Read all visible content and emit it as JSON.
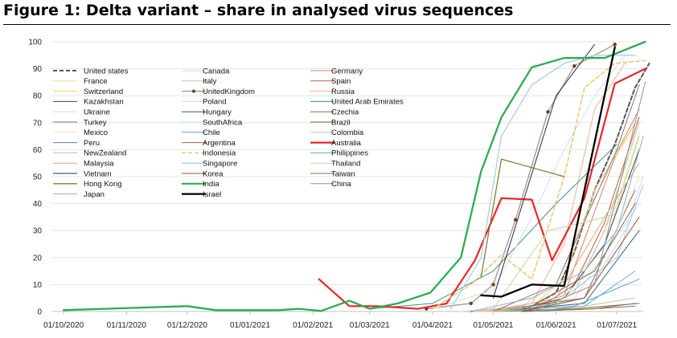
{
  "figure": {
    "title": "Figure  1: Delta variant – share in analysed virus sequences"
  },
  "chart_data": {
    "type": "line",
    "title": "Figure  1: Delta variant – share in analysed virus sequences",
    "xlabel": "",
    "ylabel": "",
    "ylim": [
      0,
      100
    ],
    "yticks": [
      0,
      10,
      20,
      30,
      40,
      50,
      60,
      70,
      80,
      90,
      100
    ],
    "xticks": [
      "01/10/2020",
      "01/11/2020",
      "01/12/2020",
      "01/01/2021",
      "01/02/2021",
      "01/03/2021",
      "01/04/2021",
      "01/05/2021",
      "01/06/2021",
      "01/07/2021"
    ],
    "xlim": [
      "2020-09-25",
      "2021-07-14"
    ],
    "grid": "horizontal",
    "legend": "top-left",
    "series": [
      {
        "name": "United states",
        "color": "#555555",
        "dash": "dashed",
        "width": 2,
        "points": [
          [
            "2021-04-20",
            0
          ],
          [
            "2021-05-20",
            2
          ],
          [
            "2021-06-01",
            7
          ],
          [
            "2021-06-10",
            22
          ],
          [
            "2021-06-20",
            45
          ],
          [
            "2021-06-30",
            62
          ],
          [
            "2021-07-10",
            83
          ],
          [
            "2021-07-17",
            92
          ]
        ]
      },
      {
        "name": "Canada",
        "color": "#f4cfc0",
        "dash": "solid",
        "width": 1,
        "points": [
          [
            "2021-04-15",
            0
          ],
          [
            "2021-05-15",
            2
          ],
          [
            "2021-06-01",
            10
          ],
          [
            "2021-06-15",
            35
          ],
          [
            "2021-07-01",
            58
          ],
          [
            "2021-07-12",
            72
          ]
        ]
      },
      {
        "name": "Germany",
        "color": "#d58560",
        "dash": "solid",
        "width": 1,
        "points": [
          [
            "2021-04-20",
            0
          ],
          [
            "2021-05-20",
            2
          ],
          [
            "2021-06-05",
            6
          ],
          [
            "2021-06-20",
            37
          ],
          [
            "2021-07-01",
            59
          ],
          [
            "2021-07-12",
            75
          ]
        ]
      },
      {
        "name": "France",
        "color": "#f5dd8e",
        "dash": "solid",
        "width": 1,
        "points": [
          [
            "2021-04-20",
            0
          ],
          [
            "2021-05-20",
            1
          ],
          [
            "2021-06-05",
            5
          ],
          [
            "2021-06-20",
            22
          ],
          [
            "2021-07-01",
            40
          ],
          [
            "2021-07-12",
            66
          ]
        ]
      },
      {
        "name": "Italy",
        "color": "#bfbfbf",
        "dash": "solid",
        "width": 1,
        "points": [
          [
            "2021-04-20",
            0
          ],
          [
            "2021-05-25",
            1
          ],
          [
            "2021-06-10",
            7
          ],
          [
            "2021-06-25",
            30
          ],
          [
            "2021-07-12",
            70
          ]
        ]
      },
      {
        "name": "Spain",
        "color": "#c06040",
        "dash": "solid",
        "width": 1,
        "points": [
          [
            "2021-04-20",
            0
          ],
          [
            "2021-05-25",
            2
          ],
          [
            "2021-06-10",
            10
          ],
          [
            "2021-06-25",
            33
          ],
          [
            "2021-07-12",
            72
          ]
        ]
      },
      {
        "name": "Switzerland",
        "color": "#f0d060",
        "dash": "solid",
        "width": 1,
        "points": [
          [
            "2021-04-20",
            0
          ],
          [
            "2021-05-20",
            2
          ],
          [
            "2021-06-05",
            12
          ],
          [
            "2021-06-20",
            45
          ],
          [
            "2021-07-10",
            70
          ]
        ]
      },
      {
        "name": "UnitedKingdom",
        "color": "#b0a090",
        "dash": "solid",
        "width": 1.5,
        "marker": "#7a3a12",
        "points": [
          [
            "2021-03-29",
            1
          ],
          [
            "2021-04-20",
            3
          ],
          [
            "2021-05-01",
            10
          ],
          [
            "2021-05-12",
            34
          ],
          [
            "2021-05-28",
            74
          ],
          [
            "2021-06-10",
            91
          ],
          [
            "2021-06-30",
            99
          ]
        ]
      },
      {
        "name": "Russia",
        "color": "#f0b090",
        "dash": "solid",
        "width": 1,
        "points": [
          [
            "2021-04-25",
            0
          ],
          [
            "2021-05-20",
            3
          ],
          [
            "2021-06-05",
            25
          ],
          [
            "2021-06-20",
            75
          ],
          [
            "2021-07-05",
            92
          ]
        ]
      },
      {
        "name": "Kazakhstan",
        "color": "#404040",
        "dash": "solid",
        "width": 1,
        "points": [
          [
            "2021-05-10",
            0
          ],
          [
            "2021-06-05",
            5
          ],
          [
            "2021-06-25",
            25
          ],
          [
            "2021-07-12",
            60
          ]
        ]
      },
      {
        "name": "Poland",
        "color": "#c8d8e8",
        "dash": "solid",
        "width": 1,
        "points": [
          [
            "2021-04-20",
            0
          ],
          [
            "2021-05-25",
            1
          ],
          [
            "2021-06-15",
            5
          ],
          [
            "2021-07-05",
            30
          ],
          [
            "2021-07-14",
            50
          ]
        ]
      },
      {
        "name": "United Arab Emirates",
        "color": "#3f8f8f",
        "dash": "solid",
        "width": 1,
        "points": [
          [
            "2021-03-01",
            1
          ],
          [
            "2021-04-01",
            3
          ],
          [
            "2021-05-01",
            15
          ],
          [
            "2021-06-01",
            40
          ],
          [
            "2021-07-01",
            62
          ]
        ]
      },
      {
        "name": "Ukraine",
        "color": "#d8d8d8",
        "dash": "solid",
        "width": 1,
        "points": [
          [
            "2021-05-10",
            0
          ],
          [
            "2021-06-10",
            5
          ],
          [
            "2021-07-12",
            40
          ]
        ]
      },
      {
        "name": "Hungary",
        "color": "#2f5f8f",
        "dash": "solid",
        "width": 1,
        "points": [
          [
            "2021-05-01",
            0
          ],
          [
            "2021-06-15",
            3
          ],
          [
            "2021-07-12",
            30
          ]
        ]
      },
      {
        "name": "Czechia",
        "color": "#8c6a50",
        "dash": "solid",
        "width": 1,
        "points": [
          [
            "2021-05-01",
            0
          ],
          [
            "2021-06-15",
            5
          ],
          [
            "2021-07-10",
            45
          ]
        ]
      },
      {
        "name": "Turkey",
        "color": "#7a7a7a",
        "dash": "solid",
        "width": 1,
        "points": [
          [
            "2021-05-01",
            0
          ],
          [
            "2021-06-01",
            10
          ],
          [
            "2021-07-01",
            60
          ],
          [
            "2021-07-12",
            84
          ]
        ]
      },
      {
        "name": "SouthAfrica",
        "color": "#cce0f0",
        "dash": "solid",
        "width": 1,
        "points": [
          [
            "2021-04-01",
            1
          ],
          [
            "2021-05-01",
            8
          ],
          [
            "2021-05-20",
            35
          ],
          [
            "2021-06-05",
            60
          ],
          [
            "2021-06-20",
            80
          ],
          [
            "2021-07-05",
            95
          ]
        ]
      },
      {
        "name": "Brazil",
        "color": "#7a6a18",
        "dash": "solid",
        "width": 1,
        "points": [
          [
            "2021-05-01",
            0
          ],
          [
            "2021-06-10",
            1
          ],
          [
            "2021-07-12",
            3
          ]
        ]
      },
      {
        "name": "Mexico",
        "color": "#efe4b8",
        "dash": "solid",
        "width": 1,
        "points": [
          [
            "2021-05-01",
            0
          ],
          [
            "2021-06-01",
            3
          ],
          [
            "2021-06-25",
            20
          ],
          [
            "2021-07-12",
            50
          ]
        ]
      },
      {
        "name": "Chile",
        "color": "#5aa0c8",
        "dash": "solid",
        "width": 1,
        "points": [
          [
            "2021-05-01",
            0
          ],
          [
            "2021-06-10",
            2
          ],
          [
            "2021-07-12",
            12
          ]
        ]
      },
      {
        "name": "Colombia",
        "color": "#b8c8a0",
        "dash": "solid",
        "width": 1,
        "points": [
          [
            "2021-05-01",
            0
          ],
          [
            "2021-06-15",
            2
          ],
          [
            "2021-07-10",
            5
          ]
        ]
      },
      {
        "name": "Peru",
        "color": "#5a7fa8",
        "dash": "solid",
        "width": 1,
        "points": [
          [
            "2021-05-15",
            0
          ],
          [
            "2021-06-20",
            1
          ],
          [
            "2021-07-10",
            3
          ]
        ]
      },
      {
        "name": "Argentina",
        "color": "#a86038",
        "dash": "solid",
        "width": 1,
        "points": [
          [
            "2021-05-15",
            0
          ],
          [
            "2021-06-20",
            1
          ],
          [
            "2021-07-10",
            2
          ]
        ]
      },
      {
        "name": "Australia",
        "color": "#e8262a",
        "dash": "solid",
        "width": 2.2,
        "points": [
          [
            "2021-02-04",
            12
          ],
          [
            "2021-02-19",
            2
          ],
          [
            "2021-03-05",
            2
          ],
          [
            "2021-03-25",
            1
          ],
          [
            "2021-04-08",
            3
          ],
          [
            "2021-04-22",
            19
          ],
          [
            "2021-05-05",
            42
          ],
          [
            "2021-05-20",
            41.5
          ],
          [
            "2021-05-30",
            19
          ],
          [
            "2021-06-15",
            42
          ],
          [
            "2021-06-30",
            84.5
          ],
          [
            "2021-07-15",
            90
          ]
        ]
      },
      {
        "name": "NewZealand",
        "color": "#9cc4e4",
        "dash": "solid",
        "width": 1,
        "points": [
          [
            "2021-05-01",
            0
          ],
          [
            "2021-06-01",
            3
          ],
          [
            "2021-07-01",
            20
          ],
          [
            "2021-07-14",
            47
          ]
        ]
      },
      {
        "name": "Indonesia",
        "color": "#e8c870",
        "dash": "dashed",
        "width": 1.5,
        "points": [
          [
            "2021-04-01",
            1
          ],
          [
            "2021-04-20",
            10
          ],
          [
            "2021-05-05",
            21
          ],
          [
            "2021-05-20",
            12
          ],
          [
            "2021-06-05",
            50
          ],
          [
            "2021-06-15",
            83
          ],
          [
            "2021-06-30",
            92
          ],
          [
            "2021-07-15",
            93
          ]
        ]
      },
      {
        "name": "Philippines",
        "color": "#58b0c0",
        "dash": "solid",
        "width": 1,
        "points": [
          [
            "2021-05-20",
            0
          ],
          [
            "2021-06-15",
            2
          ],
          [
            "2021-07-10",
            15
          ]
        ]
      },
      {
        "name": "Malaysia",
        "color": "#e0a880",
        "dash": "solid",
        "width": 1,
        "points": [
          [
            "2021-05-01",
            0
          ],
          [
            "2021-06-01",
            5
          ],
          [
            "2021-06-25",
            35
          ],
          [
            "2021-07-12",
            55
          ]
        ]
      },
      {
        "name": "Singapore",
        "color": "#a8d0e8",
        "dash": "solid",
        "width": 1.3,
        "points": [
          [
            "2021-04-10",
            1
          ],
          [
            "2021-04-25",
            20
          ],
          [
            "2021-05-05",
            65
          ],
          [
            "2021-05-20",
            84
          ],
          [
            "2021-06-05",
            92
          ],
          [
            "2021-06-20",
            95
          ],
          [
            "2021-07-10",
            95
          ]
        ]
      },
      {
        "name": "Thailand",
        "color": "#c0d8a0",
        "dash": "solid",
        "width": 1,
        "points": [
          [
            "2021-05-01",
            1
          ],
          [
            "2021-05-28",
            30
          ],
          [
            "2021-06-15",
            33
          ],
          [
            "2021-06-30",
            36
          ],
          [
            "2021-07-12",
            65
          ]
        ]
      },
      {
        "name": "Vietnam",
        "color": "#203050",
        "dash": "solid",
        "width": 1,
        "points": [
          [
            "2021-05-01",
            5
          ],
          [
            "2021-06-01",
            80
          ],
          [
            "2021-06-20",
            99
          ]
        ]
      },
      {
        "name": "Korea",
        "color": "#a05030",
        "dash": "solid",
        "width": 1,
        "points": [
          [
            "2021-05-15",
            0
          ],
          [
            "2021-06-15",
            5
          ],
          [
            "2021-07-12",
            35
          ]
        ]
      },
      {
        "name": "Taiwan",
        "color": "#707070",
        "dash": "solid",
        "width": 1,
        "points": [
          [
            "2021-05-15",
            0
          ],
          [
            "2021-06-20",
            15
          ],
          [
            "2021-07-10",
            40
          ]
        ]
      },
      {
        "name": "Hong Kong",
        "color": "#8a7a38",
        "dash": "solid",
        "width": 1.3,
        "points": [
          [
            "2021-04-25",
            13
          ],
          [
            "2021-05-05",
            56.5
          ],
          [
            "2021-06-05",
            50
          ]
        ]
      },
      {
        "name": "India",
        "color": "#2aae52",
        "dash": "solid",
        "width": 2.3,
        "points": [
          [
            "2020-10-01",
            0.5
          ],
          [
            "2020-12-01",
            2
          ],
          [
            "2020-12-15",
            0.5
          ],
          [
            "2021-01-15",
            0.5
          ],
          [
            "2021-01-25",
            1
          ],
          [
            "2021-02-05",
            0.2
          ],
          [
            "2021-02-19",
            4
          ],
          [
            "2021-03-01",
            1
          ],
          [
            "2021-03-15",
            3
          ],
          [
            "2021-03-31",
            7
          ],
          [
            "2021-04-15",
            20
          ],
          [
            "2021-04-25",
            52
          ],
          [
            "2021-05-05",
            72
          ],
          [
            "2021-05-20",
            90.5
          ],
          [
            "2021-06-05",
            94
          ],
          [
            "2021-06-25",
            94
          ],
          [
            "2021-07-15",
            100
          ]
        ]
      },
      {
        "name": "China",
        "color": "#909090",
        "dash": "solid",
        "width": 1,
        "points": [
          [
            "2021-05-20",
            0
          ],
          [
            "2021-06-20",
            10
          ],
          [
            "2021-07-15",
            85
          ]
        ]
      },
      {
        "name": "Japan",
        "color": "#8ab0d0",
        "dash": "solid",
        "width": 1,
        "points": [
          [
            "2021-04-20",
            0
          ],
          [
            "2021-05-20",
            5
          ],
          [
            "2021-06-15",
            15
          ],
          [
            "2021-07-01",
            30
          ],
          [
            "2021-07-14",
            65
          ]
        ]
      },
      {
        "name": "Israel",
        "color": "#000000",
        "dash": "solid",
        "width": 2.3,
        "points": [
          [
            "2021-04-25",
            6
          ],
          [
            "2021-05-05",
            5.5
          ],
          [
            "2021-05-20",
            10
          ],
          [
            "2021-06-05",
            9.5
          ],
          [
            "2021-06-15",
            45
          ],
          [
            "2021-06-30",
            98
          ]
        ]
      }
    ]
  }
}
